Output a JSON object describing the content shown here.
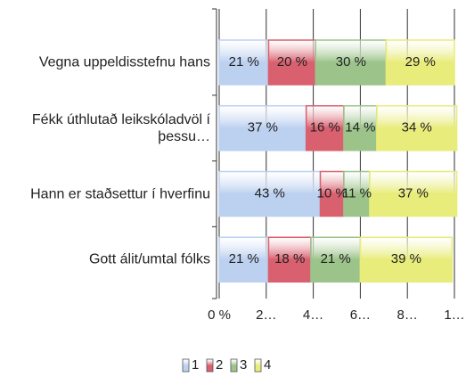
{
  "chart_data": {
    "type": "stacked_barh",
    "categories": [
      "Vegna uppeldisstefnu hans",
      "Fékk úthlutað leikskóladvöl í þessu…",
      "Hann er staðsettur í hverfinu",
      "Gott álit/umtal fólks"
    ],
    "series": [
      {
        "name": "1",
        "color": "#bcd0f0",
        "values": [
          21,
          37,
          43,
          21
        ],
        "value_labels": [
          "21 %",
          "37 %",
          "43 %",
          "21 %"
        ]
      },
      {
        "name": "2",
        "color": "#d9606f",
        "values": [
          20,
          16,
          10,
          18
        ],
        "value_labels": [
          "20 %",
          "16 %",
          "10 %",
          "18 %"
        ]
      },
      {
        "name": "3",
        "color": "#9cc48a",
        "values": [
          30,
          14,
          11,
          21
        ],
        "value_labels": [
          "30 %",
          "14 %",
          "11 %",
          "21 %"
        ]
      },
      {
        "name": "4",
        "color": "#e8ec7a",
        "values": [
          29,
          34,
          37,
          39
        ],
        "value_labels": [
          "29 %",
          "34 %",
          "37 %",
          "39 %"
        ]
      }
    ],
    "xlim": [
      0,
      100
    ],
    "xticks": [
      {
        "value": 0,
        "label": "0 %"
      },
      {
        "value": 20,
        "label": "2…"
      },
      {
        "value": 40,
        "label": "4…"
      },
      {
        "value": 60,
        "label": "6…"
      },
      {
        "value": 80,
        "label": "8…"
      },
      {
        "value": 100,
        "label": "1…"
      }
    ],
    "grid": true
  }
}
